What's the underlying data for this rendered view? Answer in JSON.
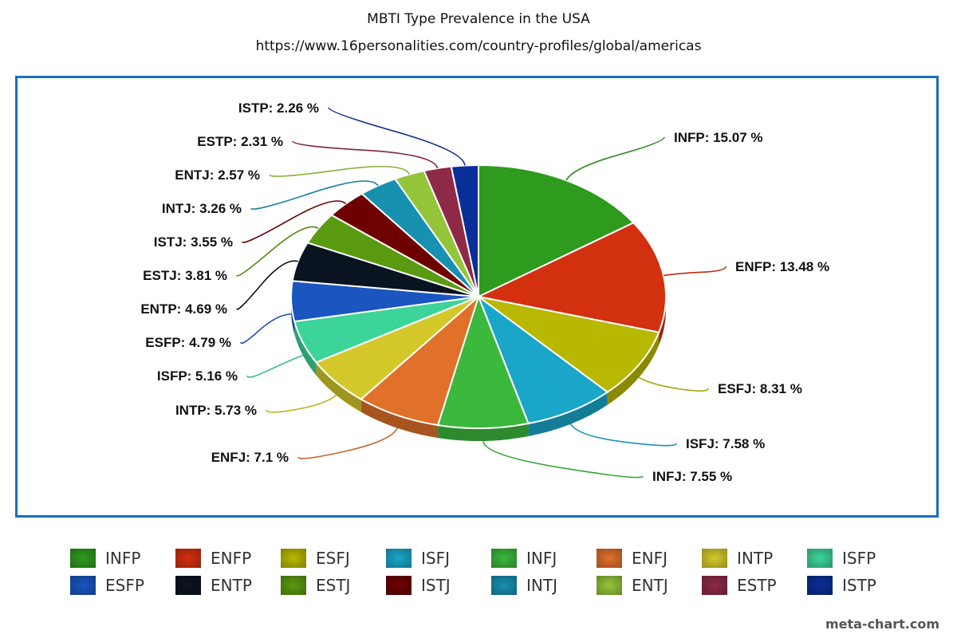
{
  "chart_data": {
    "type": "pie",
    "title": "MBTI Type Prevalence in the USA",
    "subtitle": "https://www.16personalities.com/country-profiles/global/americas",
    "unit": "%",
    "legend_position": "bottom",
    "slices": [
      {
        "label": "INFP",
        "value": 15.07,
        "color": "#2e9a1e"
      },
      {
        "label": "ENFP",
        "value": 13.48,
        "color": "#d3300f"
      },
      {
        "label": "ESFJ",
        "value": 8.31,
        "color": "#b8b800"
      },
      {
        "label": "ISFJ",
        "value": 7.58,
        "color": "#1aa6c8"
      },
      {
        "label": "INFJ",
        "value": 7.55,
        "color": "#3cb83c"
      },
      {
        "label": "ENFJ",
        "value": 7.1,
        "color": "#e0702a"
      },
      {
        "label": "INTP",
        "value": 5.73,
        "color": "#d4c82a"
      },
      {
        "label": "ISFP",
        "value": 5.16,
        "color": "#3dd49a"
      },
      {
        "label": "ESFP",
        "value": 4.79,
        "color": "#1a55c0"
      },
      {
        "label": "ENTP",
        "value": 4.69,
        "color": "#0a1420"
      },
      {
        "label": "ESTJ",
        "value": 3.81,
        "color": "#5a9a10"
      },
      {
        "label": "ISTJ",
        "value": 3.55,
        "color": "#6e0000"
      },
      {
        "label": "INTJ",
        "value": 3.26,
        "color": "#1890b0"
      },
      {
        "label": "ENTJ",
        "value": 2.57,
        "color": "#94c43a"
      },
      {
        "label": "ESTP",
        "value": 2.31,
        "color": "#8e2a48"
      },
      {
        "label": "ISTP",
        "value": 2.26,
        "color": "#0a2e98"
      }
    ]
  },
  "credit": "meta-chart.com"
}
